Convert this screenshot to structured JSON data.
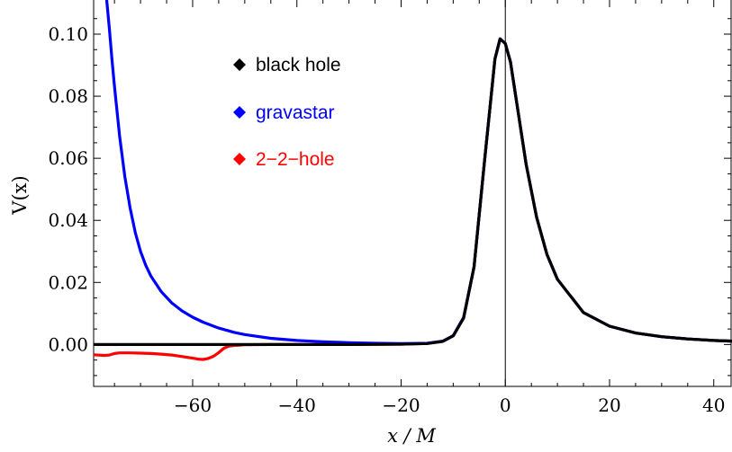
{
  "chart_data": {
    "type": "line",
    "xlabel": "x / M",
    "ylabel": "V(x)",
    "xlim": [
      -79,
      43.5
    ],
    "ylim": [
      -0.0135,
      0.111
    ],
    "x_ticks": [
      -60,
      -40,
      -20,
      0,
      20,
      40
    ],
    "x_tick_labels": [
      "−60",
      "−40",
      "−20",
      "0",
      "20",
      "40"
    ],
    "y_ticks": [
      0.0,
      0.02,
      0.04,
      0.06,
      0.08,
      0.1
    ],
    "y_tick_labels": [
      "0.00",
      "0.02",
      "0.04",
      "0.06",
      "0.08",
      "0.10"
    ],
    "grid": false,
    "legend_position": "top-left",
    "series": [
      {
        "name": "2−2−hole",
        "color": "#ff0000",
        "x": [
          -79,
          -77,
          -76,
          -75,
          -74,
          -72,
          -70,
          -68,
          -66,
          -64,
          -62,
          -60,
          -59,
          -58,
          -57,
          -56,
          -55,
          -54,
          -53,
          -52,
          -51,
          -50,
          -45,
          -40,
          -30,
          -20,
          -15,
          -12,
          -10,
          -8,
          -6,
          -4,
          -2,
          -1,
          0,
          1,
          2,
          4,
          6,
          8,
          10,
          15,
          20,
          25,
          30,
          35,
          40,
          43.5
        ],
        "y": [
          -0.0033,
          -0.0035,
          -0.0034,
          -0.0029,
          -0.0027,
          -0.0027,
          -0.0028,
          -0.0029,
          -0.0031,
          -0.0034,
          -0.0039,
          -0.0044,
          -0.0047,
          -0.0048,
          -0.0045,
          -0.0038,
          -0.0026,
          -0.0012,
          -0.0005,
          -0.0003,
          -0.0002,
          -0.0001,
          0.0,
          0.0,
          0.0,
          0.0001,
          0.0003,
          0.001,
          0.0028,
          0.0085,
          0.025,
          0.059,
          0.092,
          0.0985,
          0.097,
          0.091,
          0.08,
          0.058,
          0.041,
          0.029,
          0.021,
          0.0103,
          0.0059,
          0.0037,
          0.0025,
          0.0018,
          0.0013,
          0.0011
        ]
      },
      {
        "name": "gravastar",
        "color": "#0000ff",
        "x": [
          -76.5,
          -76,
          -75.5,
          -75,
          -74,
          -73,
          -72,
          -71,
          -70,
          -69,
          -68,
          -66,
          -64,
          -62,
          -60,
          -58,
          -55,
          -52,
          -50,
          -45,
          -40,
          -35,
          -30,
          -25,
          -20,
          -15,
          -12,
          -10,
          -8,
          -6,
          -4,
          -2,
          -1,
          0,
          1,
          2,
          4,
          6,
          8,
          10,
          15,
          20,
          25,
          30,
          35,
          40,
          43.5
        ],
        "y": [
          0.111,
          0.102,
          0.092,
          0.083,
          0.067,
          0.054,
          0.044,
          0.036,
          0.03,
          0.0255,
          0.022,
          0.017,
          0.0134,
          0.0108,
          0.0088,
          0.0072,
          0.0053,
          0.0039,
          0.0032,
          0.002,
          0.0013,
          0.0009,
          0.0006,
          0.0004,
          0.0003,
          0.0004,
          0.0011,
          0.0029,
          0.0087,
          0.025,
          0.059,
          0.092,
          0.0985,
          0.097,
          0.091,
          0.08,
          0.058,
          0.041,
          0.029,
          0.021,
          0.0103,
          0.0059,
          0.0037,
          0.0025,
          0.0018,
          0.0013,
          0.0011
        ]
      },
      {
        "name": "black hole",
        "color": "#000000",
        "x": [
          -79,
          -70,
          -60,
          -50,
          -40,
          -30,
          -20,
          -15,
          -12,
          -10,
          -8,
          -6,
          -4,
          -2,
          -1,
          0,
          1,
          2,
          4,
          6,
          8,
          10,
          15,
          20,
          25,
          30,
          35,
          40,
          43.5
        ],
        "y": [
          0.0,
          0.0,
          0.0,
          0.0,
          0.0,
          0.0,
          0.0001,
          0.0003,
          0.001,
          0.0028,
          0.0085,
          0.025,
          0.059,
          0.092,
          0.0985,
          0.097,
          0.091,
          0.08,
          0.058,
          0.041,
          0.029,
          0.021,
          0.0103,
          0.0059,
          0.0037,
          0.0025,
          0.0018,
          0.0013,
          0.0011
        ]
      }
    ],
    "legend": [
      {
        "label": "black hole",
        "color": "#000000"
      },
      {
        "label": "gravastar",
        "color": "#0000ff"
      },
      {
        "label": "2−2−hole",
        "color": "#ff0000"
      }
    ]
  }
}
